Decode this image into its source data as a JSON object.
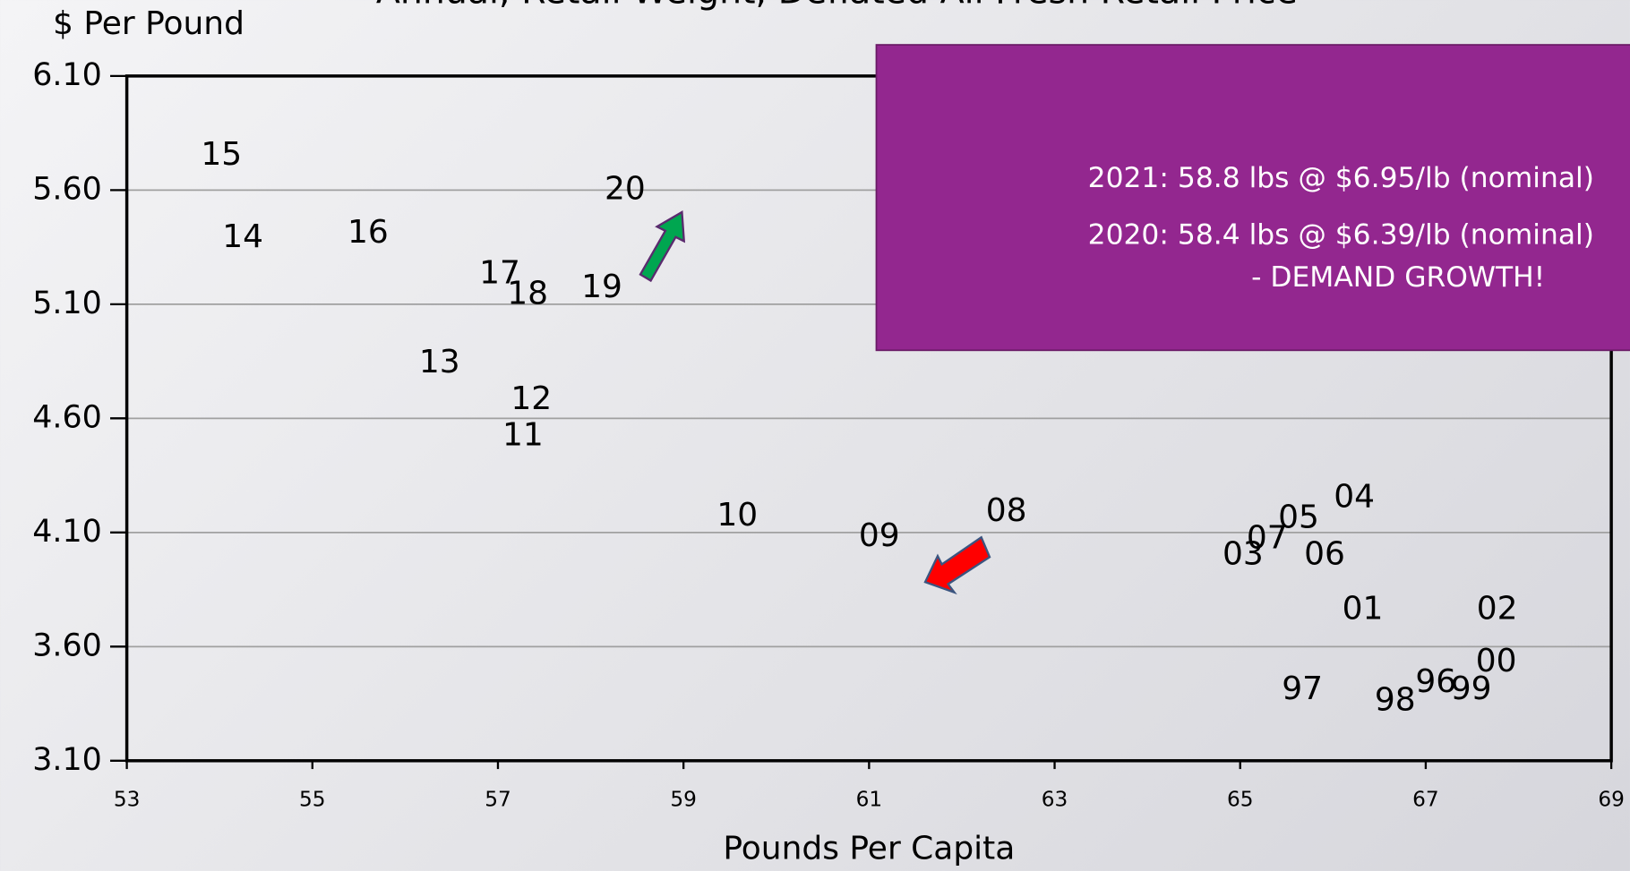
{
  "chart_data": {
    "type": "scatter",
    "title": "Annual, Retail Weight, Deflated All Fresh Retail Price",
    "y_label": "$ Per Pound",
    "x_label": "Pounds Per Capita",
    "labels": [
      "15",
      "14",
      "16",
      "17",
      "18",
      "19",
      "20",
      "13",
      "12",
      "11",
      "10",
      "09",
      "08",
      "04",
      "05",
      "07",
      "03",
      "06",
      "01",
      "02",
      "00",
      "99",
      "96",
      "98",
      "97"
    ],
    "x": [
      54.02,
      54.25,
      55.6,
      57.02,
      57.32,
      58.12,
      58.37,
      56.37,
      57.36,
      57.27,
      59.58,
      61.11,
      62.48,
      66.23,
      65.63,
      65.29,
      65.03,
      65.91,
      66.32,
      67.77,
      67.76,
      67.49,
      67.11,
      66.67,
      65.67
    ],
    "y": [
      5.75,
      5.39,
      5.41,
      5.23,
      5.14,
      5.17,
      5.6,
      4.84,
      4.68,
      4.52,
      4.17,
      4.08,
      4.19,
      4.25,
      4.16,
      4.07,
      4.0,
      4.0,
      3.76,
      3.76,
      3.53,
      3.41,
      3.44,
      3.36,
      3.41
    ],
    "xlim": [
      53,
      69
    ],
    "ylim": [
      3.1,
      6.1
    ],
    "xticks": [
      53,
      55,
      57,
      59,
      61,
      63,
      65,
      67,
      69
    ],
    "yticks": [
      {
        "value": 3.1,
        "label": "3.10"
      },
      {
        "value": 3.6,
        "label": "3.60"
      },
      {
        "value": 4.1,
        "label": "4.10"
      },
      {
        "value": 4.6,
        "label": "4.60"
      },
      {
        "value": 5.1,
        "label": "5.10"
      },
      {
        "value": 5.6,
        "label": "5.60"
      },
      {
        "value": 6.1,
        "label": "6.10"
      }
    ],
    "grid": true,
    "annotations": [
      "2021: 58.8 lbs @ $6.95/lb (nominal)",
      "2020: 58.4 lbs @ $6.39/lb (nominal)",
      "- DEMAND GROWTH!"
    ]
  }
}
